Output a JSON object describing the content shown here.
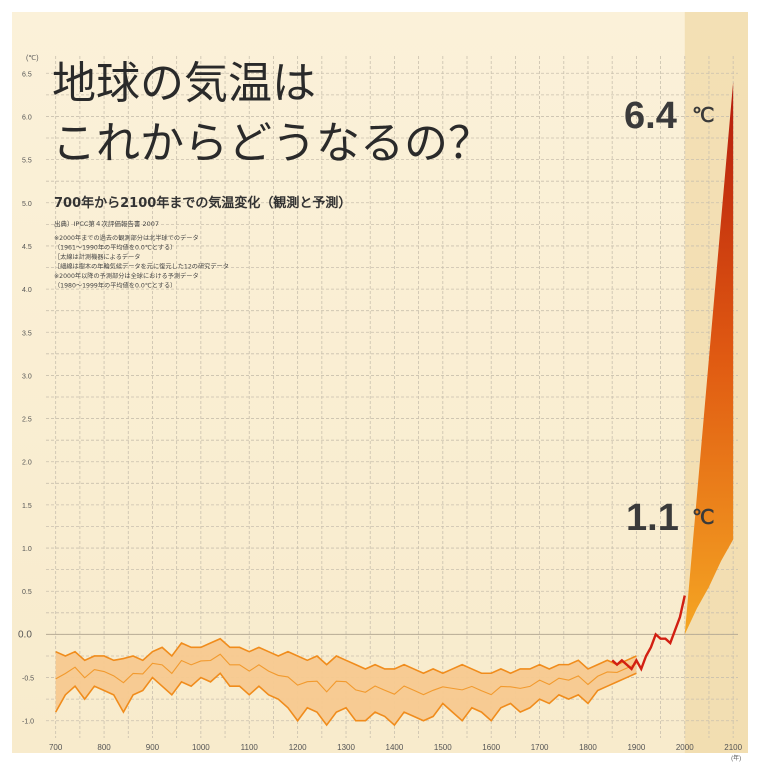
{
  "chart_data": {
    "type": "area",
    "title_line1": "地球の気温は",
    "title_line2": "これからどうなるの？",
    "subtitle": "700年から2100年までの気温変化（観測と予測）",
    "source": "出典）IPCC第４次評価報告書 2007",
    "notes": [
      "※2000年までの過去の観測部分は北半球でのデータ",
      "（1961～1990年の平均値を0.0℃とする）",
      "［太線は計測機器によるデータ",
      "［細線は樹木の年輪気候データを元に復元した12の研究データ",
      "※2000年以降の予測部分は全球における予測データ",
      "（1980～1999年の平均値を0.0℃とする）"
    ],
    "y_unit": "(℃)",
    "x_unit": "(年)",
    "ylim": [
      -1.2,
      6.7
    ],
    "xlim": [
      680,
      2110
    ],
    "y_ticks": [
      "6.5",
      "6.0",
      "5.5",
      "5.0",
      "4.5",
      "4.0",
      "3.5",
      "3.0",
      "2.5",
      "2.0",
      "1.5",
      "1.0",
      "0.5",
      "0.0",
      "-0.5",
      "-1.0"
    ],
    "x_ticks": [
      "700",
      "800",
      "900",
      "1000",
      "1100",
      "1200",
      "1300",
      "1400",
      "1500",
      "1600",
      "1700",
      "1800",
      "1900",
      "2000",
      "2100"
    ],
    "reconstruction_band": {
      "x": [
        700,
        720,
        740,
        760,
        780,
        800,
        820,
        840,
        860,
        880,
        900,
        920,
        940,
        960,
        980,
        1000,
        1020,
        1040,
        1060,
        1080,
        1100,
        1120,
        1140,
        1160,
        1180,
        1200,
        1220,
        1240,
        1260,
        1280,
        1300,
        1320,
        1340,
        1360,
        1380,
        1400,
        1420,
        1440,
        1460,
        1480,
        1500,
        1520,
        1540,
        1560,
        1580,
        1600,
        1620,
        1640,
        1660,
        1680,
        1700,
        1720,
        1740,
        1760,
        1780,
        1800,
        1820,
        1840,
        1860,
        1880,
        1900
      ],
      "upper": [
        -0.2,
        -0.25,
        -0.2,
        -0.3,
        -0.25,
        -0.25,
        -0.3,
        -0.28,
        -0.25,
        -0.3,
        -0.2,
        -0.15,
        -0.25,
        -0.1,
        -0.15,
        -0.15,
        -0.1,
        -0.05,
        -0.15,
        -0.15,
        -0.2,
        -0.15,
        -0.2,
        -0.25,
        -0.2,
        -0.25,
        -0.3,
        -0.25,
        -0.35,
        -0.25,
        -0.3,
        -0.35,
        -0.4,
        -0.35,
        -0.4,
        -0.4,
        -0.35,
        -0.4,
        -0.45,
        -0.4,
        -0.45,
        -0.4,
        -0.35,
        -0.4,
        -0.45,
        -0.45,
        -0.4,
        -0.45,
        -0.4,
        -0.4,
        -0.35,
        -0.4,
        -0.35,
        -0.35,
        -0.3,
        -0.4,
        -0.35,
        -0.3,
        -0.35,
        -0.3,
        -0.25
      ],
      "lower": [
        -0.9,
        -0.7,
        -0.6,
        -0.75,
        -0.6,
        -0.65,
        -0.7,
        -0.9,
        -0.7,
        -0.65,
        -0.5,
        -0.6,
        -0.7,
        -0.55,
        -0.6,
        -0.5,
        -0.55,
        -0.45,
        -0.6,
        -0.6,
        -0.7,
        -0.6,
        -0.7,
        -0.75,
        -0.85,
        -1.0,
        -0.85,
        -0.9,
        -1.05,
        -0.9,
        -0.85,
        -1.0,
        -1.0,
        -0.9,
        -0.95,
        -1.05,
        -0.9,
        -0.95,
        -1.0,
        -0.95,
        -0.8,
        -0.9,
        -1.0,
        -0.85,
        -0.9,
        -1.0,
        -0.85,
        -0.8,
        -0.9,
        -0.85,
        -0.75,
        -0.8,
        -0.7,
        -0.75,
        -0.7,
        -0.8,
        -0.65,
        -0.6,
        -0.55,
        -0.5,
        -0.45
      ]
    },
    "instrumental": {
      "x": [
        1850,
        1860,
        1870,
        1880,
        1890,
        1900,
        1910,
        1920,
        1930,
        1940,
        1950,
        1960,
        1970,
        1980,
        1990,
        2000
      ],
      "y": [
        -0.3,
        -0.35,
        -0.3,
        -0.35,
        -0.4,
        -0.3,
        -0.4,
        -0.25,
        -0.15,
        0.0,
        -0.05,
        -0.05,
        -0.1,
        0.05,
        0.2,
        0.45
      ]
    },
    "projection": {
      "x": [
        2000,
        2025,
        2050,
        2075,
        2100
      ],
      "upper": [
        0.0,
        1.6,
        3.2,
        4.8,
        6.4
      ],
      "lower": [
        0.0,
        0.3,
        0.55,
        0.85,
        1.1
      ]
    },
    "label_high": {
      "value": "6.4",
      "unit": "℃"
    },
    "label_low": {
      "value": "1.1",
      "unit": "℃"
    }
  }
}
